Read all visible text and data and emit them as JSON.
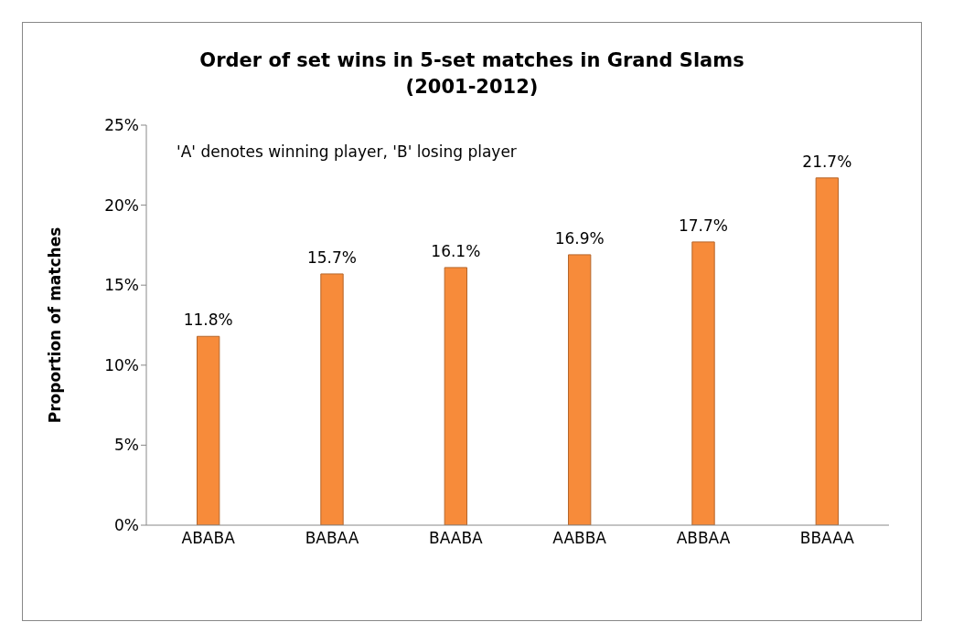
{
  "chart_data": {
    "type": "bar",
    "title": "Order of set wins in 5-set matches in Grand Slams",
    "subtitle": "(2001-2012)",
    "ylabel": "Proportion of matches",
    "categories": [
      "ABABA",
      "BABAA",
      "BAABA",
      "AABBA",
      "ABBAA",
      "BBAAA"
    ],
    "values": [
      11.8,
      15.7,
      16.1,
      16.9,
      17.7,
      21.7
    ],
    "value_labels": [
      "11.8%",
      "15.7%",
      "16.1%",
      "16.9%",
      "17.7%",
      "21.7%"
    ],
    "color": "#f78b3a",
    "ylim": [
      0,
      25
    ],
    "yticks": [
      {
        "value": 0,
        "label": "0%"
      },
      {
        "value": 5,
        "label": "5%"
      },
      {
        "value": 10,
        "label": "10%"
      },
      {
        "value": 15,
        "label": "15%"
      },
      {
        "value": 20,
        "label": "20%"
      },
      {
        "value": 25,
        "label": "25%"
      }
    ],
    "annotations": [
      "'A' denotes winning player, 'B' losing player"
    ],
    "grid": false,
    "legend": false
  }
}
